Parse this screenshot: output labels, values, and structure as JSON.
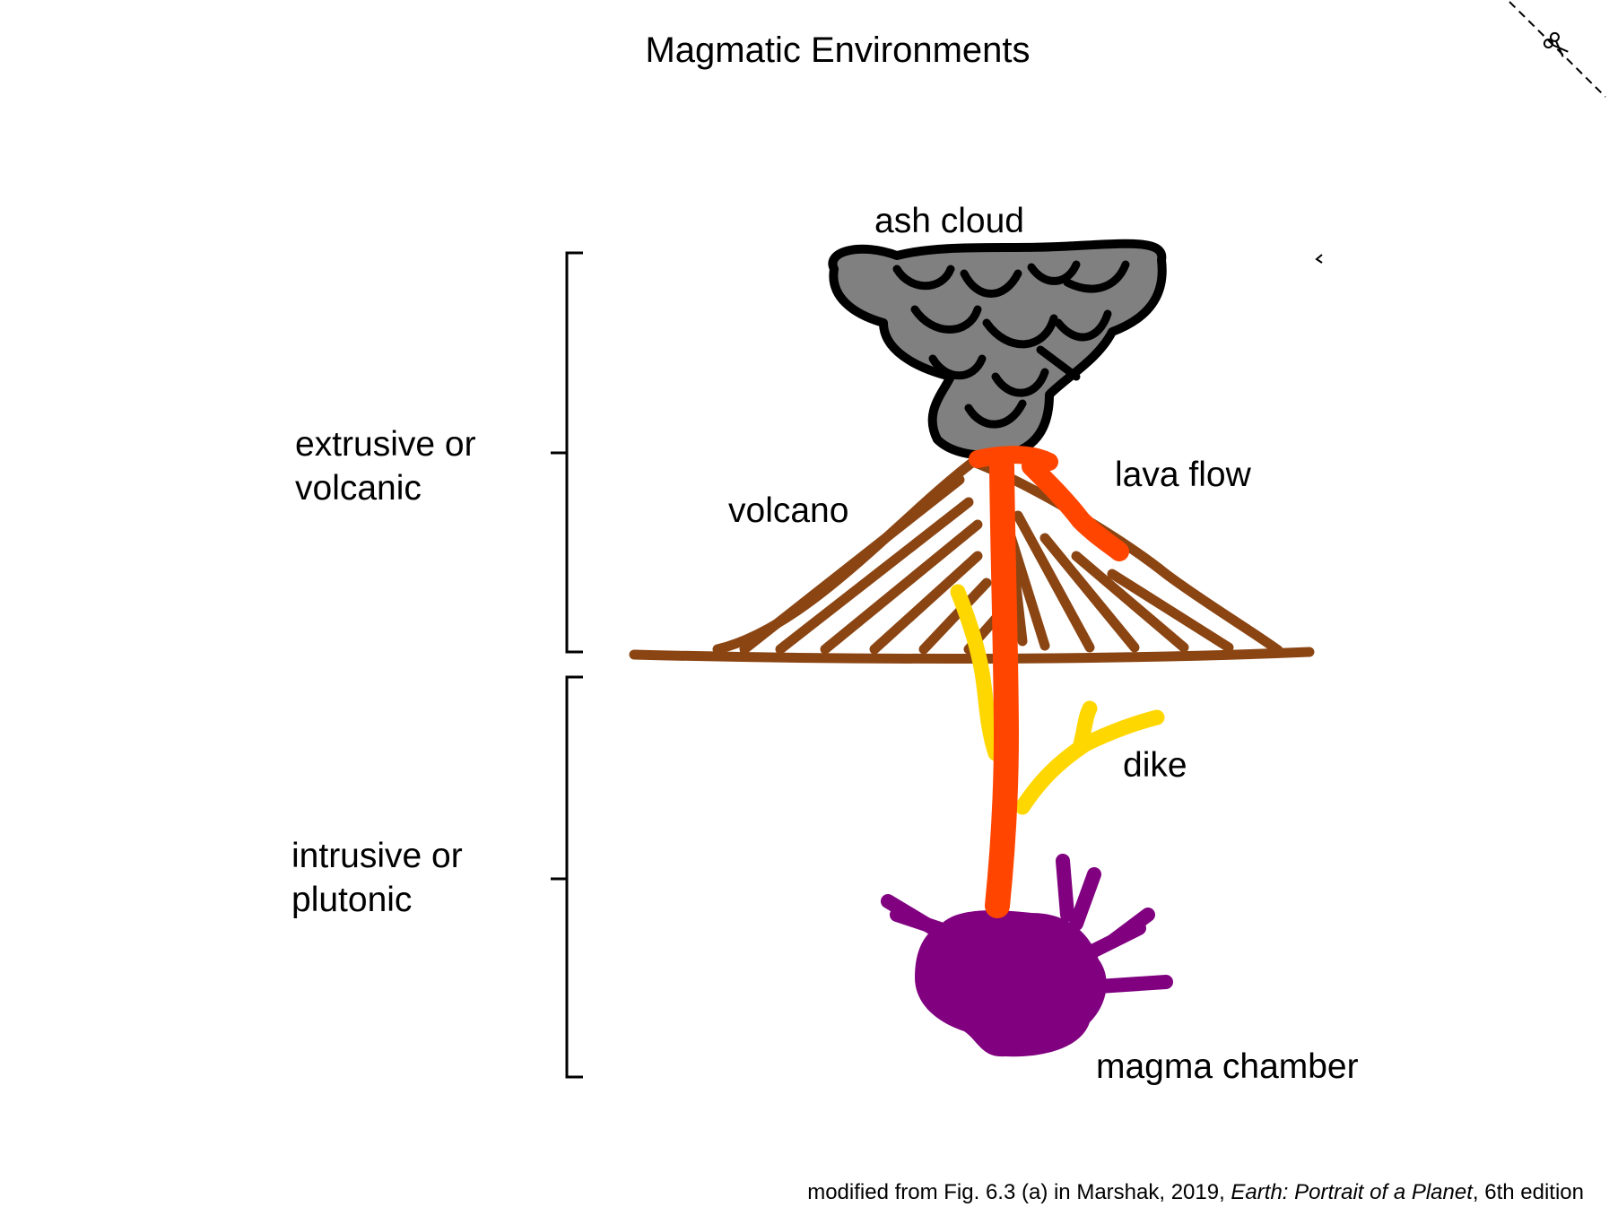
{
  "title": "Magmatic Environments",
  "labels": {
    "ash_cloud": "ash  cloud",
    "lava_flow": "lava flow",
    "volcano": "volcano",
    "dike": "dike",
    "magma_chamber": "magma chamber",
    "extrusive_line1": "extrusive or",
    "extrusive_line2": "volcanic",
    "intrusive_line1": "intrusive or",
    "intrusive_line2": "plutonic"
  },
  "caption": {
    "prefix": "modified from Fig. 6.3 (a) in Marshak, 2019, ",
    "book_title": "Earth: Portrait of a Planet",
    "suffix": ", 6th edition"
  },
  "icons": {
    "corner": "scissors-icon"
  },
  "colors": {
    "ash_fill": "#808080",
    "ash_outline": "#000000",
    "volcano": "#8b4513",
    "lava": "#ff4500",
    "dike": "#ffd700",
    "magma": "#800080"
  }
}
